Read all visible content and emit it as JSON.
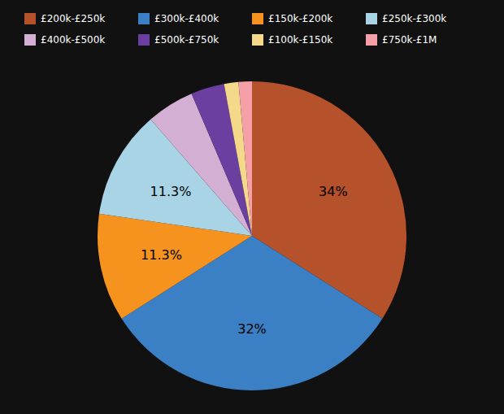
{
  "chart_data": {
    "type": "pie",
    "categories": [
      "£200k-£250k",
      "£300k-£400k",
      "£150k-£200k",
      "£250k-£300k",
      "£400k-£500k",
      "£500k-£750k",
      "£100k-£150k",
      "£750k-£1M"
    ],
    "values": [
      34.0,
      32.0,
      11.3,
      11.3,
      5.0,
      3.5,
      1.5,
      1.4
    ],
    "value_labels": [
      "34%",
      "32%",
      "11.3%",
      "11.3%",
      null,
      null,
      null,
      null
    ],
    "colors": [
      "#b5512b",
      "#3b7fc4",
      "#f5931e",
      "#a8d4e6",
      "#d4afd4",
      "#6b3fa0",
      "#f5d98b",
      "#f5a0a8"
    ],
    "data_labels": true
  }
}
